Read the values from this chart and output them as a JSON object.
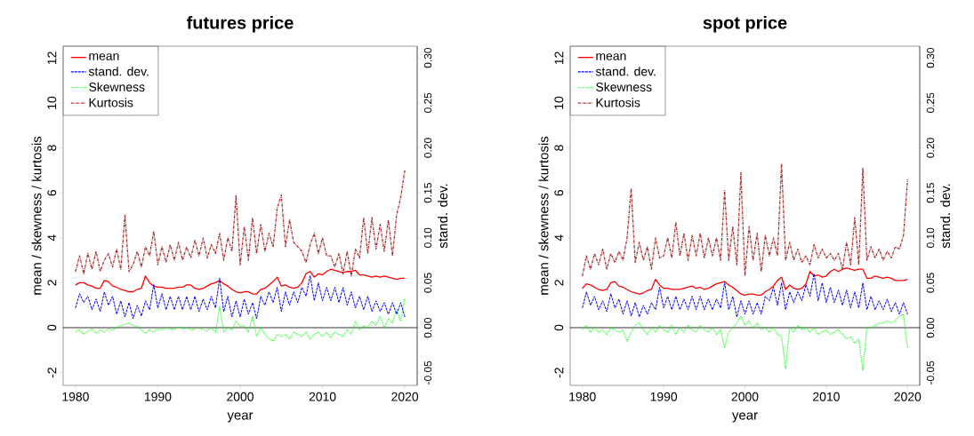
{
  "chart_data": [
    {
      "type": "line",
      "title": "futures price",
      "xlabel": "year",
      "ylabel": "mean / skewness / kurtosis",
      "y2label": "stand. dev.",
      "xlim": [
        1978.5,
        2021.5
      ],
      "xticks": [
        1980,
        1990,
        2000,
        2010,
        2020
      ],
      "ylim": [
        -2.57,
        12.53
      ],
      "yticks": [
        -2,
        0,
        2,
        4,
        6,
        8,
        10,
        12
      ],
      "y2lim": [
        -0.064,
        0.313
      ],
      "y2ticks": [
        {
          "value": -0.05,
          "label": "-0.05"
        },
        {
          "value": 0,
          "label": "0.00"
        },
        {
          "value": 0.05,
          "label": "0.05"
        },
        {
          "value": 0.1,
          "label": "0.10"
        },
        {
          "value": 0.15,
          "label": "0.15"
        },
        {
          "value": 0.2,
          "label": "0.20"
        },
        {
          "value": 0.25,
          "label": "0.25"
        },
        {
          "value": 0.3,
          "label": "0.30"
        }
      ],
      "legend": "top left",
      "grid": false,
      "marker": "none",
      "ref_lines": [
        {
          "axis": "y",
          "value": 0,
          "color": "#000000"
        }
      ],
      "x": [
        1980,
        1980.5,
        1981,
        1981.5,
        1982,
        1982.5,
        1983,
        1983.5,
        1984,
        1984.5,
        1985,
        1985.5,
        1986,
        1986.5,
        1987,
        1987.5,
        1988,
        1988.5,
        1989,
        1989.5,
        1990,
        1990.5,
        1991,
        1991.5,
        1992,
        1992.5,
        1993,
        1993.5,
        1994,
        1994.5,
        1995,
        1995.5,
        1996,
        1996.5,
        1997,
        1997.5,
        1998,
        1998.5,
        1999,
        1999.5,
        2000,
        2000.5,
        2001,
        2001.5,
        2002,
        2002.5,
        2003,
        2003.5,
        2004,
        2004.5,
        2005,
        2005.5,
        2006,
        2006.5,
        2007,
        2007.5,
        2008,
        2008.5,
        2009,
        2009.5,
        2010,
        2010.5,
        2011,
        2011.5,
        2012,
        2012.5,
        2013,
        2013.5,
        2014,
        2014.5,
        2015,
        2015.5,
        2016,
        2016.5,
        2017,
        2017.5,
        2018,
        2018.5,
        2019,
        2019.5,
        2020
      ],
      "series": [
        {
          "name": "mean",
          "color": "#ff0000",
          "line_style": "solid",
          "values": [
            1.9,
            2.0,
            2.0,
            1.9,
            1.85,
            1.75,
            1.75,
            2.1,
            2.05,
            1.85,
            1.8,
            1.7,
            1.65,
            1.6,
            1.6,
            1.7,
            1.75,
            2.3,
            2.0,
            1.85,
            1.8,
            1.8,
            1.75,
            1.75,
            1.75,
            1.8,
            1.8,
            1.9,
            1.9,
            1.75,
            1.7,
            1.75,
            1.85,
            1.95,
            2.0,
            2.1,
            1.95,
            1.85,
            1.7,
            1.6,
            1.55,
            1.6,
            1.6,
            1.5,
            1.5,
            1.7,
            1.75,
            1.9,
            2.05,
            2.25,
            1.85,
            1.9,
            1.8,
            1.75,
            1.8,
            2.0,
            2.4,
            2.5,
            2.25,
            2.4,
            2.35,
            2.5,
            2.6,
            2.55,
            2.5,
            2.45,
            2.5,
            2.5,
            2.55,
            2.35,
            2.35,
            2.3,
            2.25,
            2.3,
            2.25,
            2.3,
            2.25,
            2.2,
            2.15,
            2.2,
            2.2
          ]
        },
        {
          "name": "stand. dev.",
          "color": "#0000ff",
          "line_style": "dashed",
          "axis": "y2",
          "values": [
            0.022,
            0.038,
            0.028,
            0.035,
            0.02,
            0.032,
            0.018,
            0.04,
            0.025,
            0.035,
            0.015,
            0.03,
            0.012,
            0.028,
            0.01,
            0.025,
            0.013,
            0.03,
            0.02,
            0.048,
            0.022,
            0.038,
            0.02,
            0.035,
            0.02,
            0.035,
            0.02,
            0.035,
            0.02,
            0.035,
            0.018,
            0.032,
            0.02,
            0.035,
            0.022,
            0.055,
            0.018,
            0.035,
            0.012,
            0.03,
            0.012,
            0.032,
            0.015,
            0.028,
            0.01,
            0.035,
            0.025,
            0.04,
            0.028,
            0.045,
            0.018,
            0.04,
            0.025,
            0.04,
            0.028,
            0.045,
            0.035,
            0.058,
            0.03,
            0.05,
            0.03,
            0.045,
            0.03,
            0.045,
            0.028,
            0.045,
            0.025,
            0.04,
            0.022,
            0.035,
            0.02,
            0.035,
            0.018,
            0.03,
            0.018,
            0.028,
            0.015,
            0.028,
            0.015,
            0.028,
            0.012
          ]
        },
        {
          "name": "Skewness",
          "color": "#00ff00",
          "line_style": "dotted",
          "values": [
            -0.2,
            -0.1,
            -0.3,
            -0.15,
            -0.05,
            -0.25,
            -0.1,
            -0.2,
            -0.05,
            -0.1,
            0.0,
            0.1,
            0.15,
            0.2,
            0.1,
            0.05,
            -0.1,
            -0.25,
            -0.1,
            -0.2,
            -0.05,
            -0.1,
            0.0,
            -0.05,
            -0.1,
            0.05,
            -0.05,
            0.0,
            -0.1,
            -0.05,
            0.0,
            -0.1,
            -0.15,
            0.0,
            -0.2,
            0.9,
            -0.2,
            0.0,
            -0.1,
            0.3,
            0.05,
            0.1,
            -0.2,
            0.5,
            -0.4,
            0.0,
            -0.3,
            -0.5,
            -0.6,
            -0.3,
            -0.4,
            -0.3,
            -0.5,
            -0.2,
            -0.3,
            -0.4,
            -0.2,
            -0.5,
            -0.3,
            -0.2,
            -0.4,
            -0.2,
            -0.45,
            -0.2,
            -0.3,
            -0.4,
            -0.1,
            -0.3,
            0.3,
            -0.1,
            0.1,
            0.0,
            0.3,
            0.1,
            0.5,
            0.0,
            0.4,
            0.2,
            0.8,
            0.3,
            1.3
          ]
        },
        {
          "name": "Kurtosis",
          "color": "#a52a2a",
          "line_style": "dashdot",
          "values": [
            2.5,
            3.2,
            2.4,
            3.3,
            2.6,
            3.4,
            2.5,
            3.0,
            3.3,
            2.7,
            3.5,
            2.6,
            5.0,
            2.5,
            2.8,
            3.4,
            2.7,
            3.6,
            3.2,
            4.3,
            2.8,
            3.6,
            2.9,
            3.7,
            3.0,
            3.8,
            3.0,
            3.6,
            3.1,
            3.9,
            3.2,
            4.0,
            3.1,
            3.7,
            3.3,
            4.2,
            3.0,
            4.0,
            3.4,
            5.9,
            2.8,
            4.5,
            3.0,
            4.9,
            3.3,
            4.6,
            3.4,
            4.2,
            3.6,
            5.3,
            5.9,
            3.6,
            4.8,
            3.8,
            3.6,
            3.4,
            2.9,
            3.7,
            4.2,
            3.3,
            4.0,
            3.2,
            3.2,
            2.7,
            3.3,
            2.4,
            3.4,
            2.3,
            3.5,
            3.1,
            4.9,
            3.3,
            4.9,
            3.5,
            4.6,
            3.4,
            4.8,
            3.2,
            5.0,
            5.8,
            7.0
          ]
        }
      ]
    },
    {
      "type": "line",
      "title": "spot price",
      "xlabel": "year",
      "ylabel": "mean / skewness / kurtosis",
      "y2label": "stand. dev.",
      "xlim": [
        1978.5,
        2021.5
      ],
      "xticks": [
        1980,
        1990,
        2000,
        2010,
        2020
      ],
      "ylim": [
        -2.57,
        12.53
      ],
      "yticks": [
        -2,
        0,
        2,
        4,
        6,
        8,
        10,
        12
      ],
      "y2lim": [
        -0.064,
        0.313
      ],
      "y2ticks": [
        {
          "value": -0.05,
          "label": "-0.05"
        },
        {
          "value": 0,
          "label": "0.00"
        },
        {
          "value": 0.05,
          "label": "0.05"
        },
        {
          "value": 0.1,
          "label": "0.10"
        },
        {
          "value": 0.15,
          "label": "0.15"
        },
        {
          "value": 0.2,
          "label": "0.20"
        },
        {
          "value": 0.25,
          "label": "0.25"
        },
        {
          "value": 0.3,
          "label": "0.30"
        }
      ],
      "legend": "top left",
      "grid": false,
      "marker": "none",
      "ref_lines": [
        {
          "axis": "y",
          "value": 0,
          "color": "#000000"
        }
      ],
      "x": [
        1980,
        1980.5,
        1981,
        1981.5,
        1982,
        1982.5,
        1983,
        1983.5,
        1984,
        1984.5,
        1985,
        1985.5,
        1986,
        1986.5,
        1987,
        1987.5,
        1988,
        1988.5,
        1989,
        1989.5,
        1990,
        1990.5,
        1991,
        1991.5,
        1992,
        1992.5,
        1993,
        1993.5,
        1994,
        1994.5,
        1995,
        1995.5,
        1996,
        1996.5,
        1997,
        1997.5,
        1998,
        1998.5,
        1999,
        1999.5,
        2000,
        2000.5,
        2001,
        2001.5,
        2002,
        2002.5,
        2003,
        2003.5,
        2004,
        2004.5,
        2005,
        2005.5,
        2006,
        2006.5,
        2007,
        2007.5,
        2008,
        2008.5,
        2009,
        2009.5,
        2010,
        2010.5,
        2011,
        2011.5,
        2012,
        2012.5,
        2013,
        2013.5,
        2014,
        2014.5,
        2015,
        2015.5,
        2016,
        2016.5,
        2017,
        2017.5,
        2018,
        2018.5,
        2019,
        2019.5,
        2020
      ],
      "series": [
        {
          "name": "mean",
          "color": "#ff0000",
          "line_style": "solid",
          "values": [
            1.75,
            1.95,
            1.9,
            1.8,
            1.7,
            1.65,
            1.7,
            2.0,
            2.05,
            1.85,
            1.8,
            1.7,
            1.6,
            1.55,
            1.5,
            1.55,
            1.65,
            1.7,
            2.15,
            1.9,
            1.75,
            1.75,
            1.7,
            1.7,
            1.7,
            1.75,
            1.8,
            1.85,
            1.75,
            1.8,
            1.7,
            1.75,
            1.85,
            1.95,
            2.0,
            2.05,
            1.9,
            1.8,
            1.65,
            1.5,
            1.45,
            1.5,
            1.5,
            1.45,
            1.45,
            1.6,
            1.7,
            1.85,
            2.1,
            2.25,
            1.7,
            1.9,
            1.75,
            1.7,
            1.75,
            1.95,
            2.5,
            2.3,
            2.35,
            2.25,
            2.3,
            2.5,
            2.6,
            2.5,
            2.6,
            2.65,
            2.6,
            2.55,
            2.6,
            2.6,
            2.2,
            2.2,
            2.3,
            2.25,
            2.2,
            2.25,
            2.2,
            2.1,
            2.1,
            2.1,
            2.15
          ]
        },
        {
          "name": "stand. dev.",
          "color": "#0000ff",
          "line_style": "dashed",
          "axis": "y2",
          "values": [
            0.022,
            0.04,
            0.025,
            0.035,
            0.02,
            0.03,
            0.018,
            0.038,
            0.022,
            0.032,
            0.015,
            0.03,
            0.013,
            0.028,
            0.012,
            0.025,
            0.015,
            0.028,
            0.02,
            0.045,
            0.022,
            0.035,
            0.02,
            0.035,
            0.02,
            0.032,
            0.02,
            0.035,
            0.02,
            0.035,
            0.02,
            0.032,
            0.02,
            0.032,
            0.022,
            0.05,
            0.02,
            0.035,
            0.012,
            0.03,
            0.015,
            0.03,
            0.015,
            0.028,
            0.015,
            0.035,
            0.03,
            0.045,
            0.025,
            0.05,
            0.02,
            0.04,
            0.028,
            0.04,
            0.03,
            0.048,
            0.035,
            0.06,
            0.03,
            0.05,
            0.028,
            0.045,
            0.028,
            0.042,
            0.025,
            0.042,
            0.022,
            0.04,
            0.022,
            0.05,
            0.02,
            0.035,
            0.02,
            0.03,
            0.02,
            0.032,
            0.018,
            0.028,
            0.015,
            0.028,
            0.015
          ]
        },
        {
          "name": "Skewness",
          "color": "#00ff00",
          "line_style": "dotted",
          "values": [
            -0.1,
            0.1,
            -0.2,
            0.0,
            -0.2,
            -0.1,
            -0.3,
            0.0,
            -0.1,
            -0.2,
            -0.1,
            -0.6,
            -0.2,
            0.1,
            0.2,
            -0.1,
            -0.3,
            0.0,
            -0.2,
            0.1,
            -0.1,
            -0.2,
            0.1,
            -0.3,
            0.0,
            -0.2,
            0.1,
            -0.1,
            -0.2,
            0.1,
            -0.1,
            -0.2,
            0.0,
            -0.3,
            -0.1,
            -0.9,
            -0.2,
            0.0,
            0.2,
            0.5,
            0.1,
            0.3,
            0.0,
            0.2,
            -0.1,
            0.0,
            -0.2,
            0.0,
            -0.3,
            -0.4,
            -1.8,
            0.0,
            -0.2,
            0.1,
            -0.1,
            0.0,
            -0.2,
            0.0,
            -0.3,
            -0.2,
            -0.1,
            -0.3,
            -0.2,
            -0.1,
            -0.3,
            -0.5,
            -0.4,
            -0.7,
            -0.5,
            -1.9,
            0.0,
            0.0,
            0.1,
            0.2,
            0.2,
            0.3,
            0.2,
            0.3,
            0.5,
            0.6,
            -0.9
          ]
        },
        {
          "name": "Kurtosis",
          "color": "#a52a2a",
          "line_style": "dashdot",
          "values": [
            2.3,
            3.2,
            2.6,
            3.3,
            2.8,
            3.5,
            2.6,
            3.3,
            2.9,
            3.4,
            3.0,
            4.0,
            6.2,
            2.9,
            3.8,
            3.0,
            3.6,
            2.6,
            4.0,
            3.1,
            3.2,
            4.0,
            3.1,
            4.7,
            3.2,
            4.2,
            3.0,
            4.1,
            3.2,
            4.2,
            3.1,
            4.0,
            3.2,
            4.0,
            3.0,
            6.1,
            3.0,
            4.5,
            2.8,
            6.9,
            2.3,
            4.5,
            3.0,
            4.2,
            2.5,
            4.1,
            3.2,
            4.0,
            3.2,
            7.3,
            3.0,
            3.8,
            3.0,
            3.5,
            2.9,
            3.2,
            2.8,
            3.7,
            3.1,
            3.5,
            3.1,
            3.3,
            3.0,
            3.3,
            2.6,
            3.8,
            2.8,
            4.9,
            2.8,
            7.1,
            3.0,
            3.6,
            3.1,
            3.5,
            3.0,
            3.4,
            3.1,
            3.6,
            3.5,
            4.1,
            6.6
          ]
        }
      ]
    }
  ]
}
